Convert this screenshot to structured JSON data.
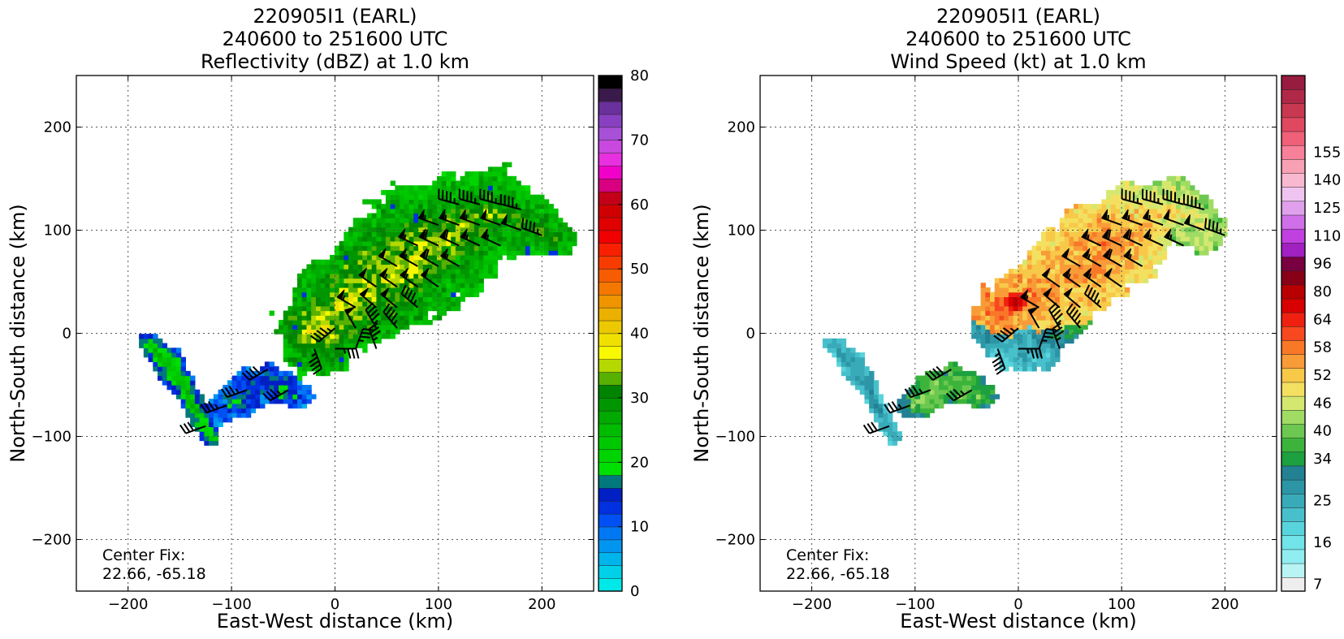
{
  "chart_data": [
    {
      "type": "heatmap",
      "title_lines": [
        "220905I1 (EARL)",
        "240600 to 251600 UTC",
        "Reflectivity (dBZ) at 1.0 km"
      ],
      "xlabel": "East-West distance (km)",
      "ylabel": "North-South distance (km)",
      "xlim": [
        -250,
        250
      ],
      "ylim": [
        -250,
        250
      ],
      "xticks": [
        -200,
        -100,
        0,
        100,
        200
      ],
      "yticks": [
        -200,
        -100,
        0,
        100,
        200
      ],
      "grid": true,
      "annotation": [
        "Center Fix:",
        "22.66, -65.18"
      ],
      "colorbar": {
        "min": 0,
        "max": 80,
        "tick_values": [
          0,
          10,
          20,
          30,
          40,
          50,
          60,
          70,
          80
        ],
        "colors": [
          "#00e8e8",
          "#00d0e8",
          "#00b4ec",
          "#0096f0",
          "#0078f4",
          "#0050f4",
          "#0030e0",
          "#0020c4",
          "#00787c",
          "#00e000",
          "#00d400",
          "#00c800",
          "#00bc00",
          "#00aa00",
          "#009600",
          "#008400",
          "#58b000",
          "#b4d800",
          "#f8f800",
          "#f0e000",
          "#ecc800",
          "#ecb000",
          "#f09400",
          "#f47800",
          "#f85c00",
          "#f83c00",
          "#f82000",
          "#f00000",
          "#e00000",
          "#d00000",
          "#c40018",
          "#d80080",
          "#f000c8",
          "#e830e0",
          "#c848e0",
          "#a850d8",
          "#8840c0",
          "#6a309c",
          "#3a1a4a",
          "#000000"
        ]
      },
      "echo_segments": [
        {
          "x": [
            -20,
            0,
            30,
            60,
            90,
            120,
            150,
            180,
            210
          ],
          "y": [
            0,
            20,
            45,
            65,
            82,
            100,
            115,
            105,
            90
          ],
          "width_km": [
            40,
            50,
            55,
            60,
            60,
            55,
            45,
            35,
            20
          ],
          "core_dbz": [
            38,
            36,
            35,
            36,
            34,
            33,
            32,
            30,
            30
          ],
          "edge_dbz": [
            24,
            24,
            25,
            24,
            24,
            23,
            23,
            23,
            24
          ]
        },
        {
          "x": [
            -180,
            -165,
            -150,
            -140,
            -130,
            -122
          ],
          "y": [
            -15,
            -30,
            -50,
            -70,
            -90,
            -105
          ],
          "width_km": [
            12,
            14,
            12,
            10,
            10,
            8
          ],
          "core_dbz": [
            26,
            26,
            25,
            25,
            24,
            24
          ],
          "edge_dbz": [
            12,
            12,
            13,
            14,
            14,
            14
          ]
        },
        {
          "x": [
            -125,
            -110,
            -95,
            -80,
            -65,
            -50,
            -35
          ],
          "y": [
            -80,
            -75,
            -65,
            -55,
            -50,
            -58,
            -65
          ],
          "width_km": [
            10,
            16,
            18,
            20,
            18,
            16,
            12
          ],
          "core_dbz": [
            14,
            14,
            15,
            16,
            18,
            20,
            14
          ],
          "edge_dbz": [
            8,
            8,
            9,
            10,
            10,
            11,
            8
          ]
        }
      ],
      "barbs": [
        {
          "x": 120,
          "y": 125,
          "speed_kt": 45,
          "dir_deg": 285
        },
        {
          "x": 140,
          "y": 125,
          "speed_kt": 45,
          "dir_deg": 285
        },
        {
          "x": 160,
          "y": 125,
          "speed_kt": 45,
          "dir_deg": 285
        },
        {
          "x": 180,
          "y": 120,
          "speed_kt": 45,
          "dir_deg": 285
        },
        {
          "x": 100,
          "y": 105,
          "speed_kt": 55,
          "dir_deg": 290
        },
        {
          "x": 120,
          "y": 105,
          "speed_kt": 55,
          "dir_deg": 290
        },
        {
          "x": 140,
          "y": 105,
          "speed_kt": 55,
          "dir_deg": 290
        },
        {
          "x": 160,
          "y": 105,
          "speed_kt": 50,
          "dir_deg": 290
        },
        {
          "x": 180,
          "y": 100,
          "speed_kt": 50,
          "dir_deg": 290
        },
        {
          "x": 200,
          "y": 95,
          "speed_kt": 45,
          "dir_deg": 290
        },
        {
          "x": 80,
          "y": 85,
          "speed_kt": 55,
          "dir_deg": 295
        },
        {
          "x": 100,
          "y": 85,
          "speed_kt": 60,
          "dir_deg": 295
        },
        {
          "x": 120,
          "y": 85,
          "speed_kt": 60,
          "dir_deg": 295
        },
        {
          "x": 140,
          "y": 85,
          "speed_kt": 55,
          "dir_deg": 295
        },
        {
          "x": 160,
          "y": 85,
          "speed_kt": 55,
          "dir_deg": 295
        },
        {
          "x": 60,
          "y": 65,
          "speed_kt": 50,
          "dir_deg": 300
        },
        {
          "x": 80,
          "y": 65,
          "speed_kt": 55,
          "dir_deg": 300
        },
        {
          "x": 100,
          "y": 65,
          "speed_kt": 60,
          "dir_deg": 300
        },
        {
          "x": 120,
          "y": 65,
          "speed_kt": 55,
          "dir_deg": 300
        },
        {
          "x": 40,
          "y": 45,
          "speed_kt": 50,
          "dir_deg": 305
        },
        {
          "x": 60,
          "y": 45,
          "speed_kt": 55,
          "dir_deg": 305
        },
        {
          "x": 80,
          "y": 45,
          "speed_kt": 55,
          "dir_deg": 305
        },
        {
          "x": 100,
          "y": 45,
          "speed_kt": 50,
          "dir_deg": 305
        },
        {
          "x": 20,
          "y": 25,
          "speed_kt": 55,
          "dir_deg": 300
        },
        {
          "x": 40,
          "y": 25,
          "speed_kt": 50,
          "dir_deg": 310
        },
        {
          "x": 60,
          "y": 25,
          "speed_kt": 50,
          "dir_deg": 310
        },
        {
          "x": 80,
          "y": 25,
          "speed_kt": 45,
          "dir_deg": 310
        },
        {
          "x": 0,
          "y": 5,
          "speed_kt": 45,
          "dir_deg": 230
        },
        {
          "x": 20,
          "y": 5,
          "speed_kt": 50,
          "dir_deg": 330
        },
        {
          "x": 40,
          "y": 5,
          "speed_kt": 45,
          "dir_deg": 330
        },
        {
          "x": 60,
          "y": 5,
          "speed_kt": 45,
          "dir_deg": 320
        },
        {
          "x": -20,
          "y": -15,
          "speed_kt": 45,
          "dir_deg": 160
        },
        {
          "x": 0,
          "y": -15,
          "speed_kt": 35,
          "dir_deg": 90
        },
        {
          "x": 20,
          "y": -15,
          "speed_kt": 35,
          "dir_deg": 20
        },
        {
          "x": 40,
          "y": -15,
          "speed_kt": 35,
          "dir_deg": 340
        },
        {
          "x": -65,
          "y": -35,
          "speed_kt": 40,
          "dir_deg": 240
        },
        {
          "x": -45,
          "y": -55,
          "speed_kt": 35,
          "dir_deg": 240
        },
        {
          "x": -85,
          "y": -55,
          "speed_kt": 35,
          "dir_deg": 250
        },
        {
          "x": -105,
          "y": -70,
          "speed_kt": 35,
          "dir_deg": 250
        },
        {
          "x": -125,
          "y": -90,
          "speed_kt": 30,
          "dir_deg": 250
        }
      ]
    },
    {
      "type": "heatmap",
      "title_lines": [
        "220905I1 (EARL)",
        "240600 to 251600 UTC",
        "Wind Speed (kt) at 1.0 km"
      ],
      "xlabel": "East-West distance (km)",
      "ylabel": "North-South distance (km)",
      "xlim": [
        -250,
        250
      ],
      "ylim": [
        -250,
        250
      ],
      "xticks": [
        -200,
        -100,
        0,
        100,
        200
      ],
      "yticks": [
        -200,
        -100,
        0,
        100,
        200
      ],
      "grid": true,
      "annotation": [
        "Center Fix:",
        "22.66, -65.18"
      ],
      "colorbar": {
        "tick_labels": [
          "7",
          "16",
          "25",
          "34",
          "40",
          "46",
          "52",
          "58",
          "64",
          "80",
          "96",
          "110",
          "125",
          "140",
          "155"
        ],
        "tick_index": [
          0,
          3,
          6,
          9,
          11,
          13,
          15,
          17,
          19,
          21,
          23,
          25,
          27,
          29,
          31
        ],
        "colors": [
          "#eeeeee",
          "#b8f4f4",
          "#90eef0",
          "#70e4e8",
          "#58d4dc",
          "#48c0cc",
          "#38aab8",
          "#2c96a6",
          "#228294",
          "#1ca040",
          "#3cb43c",
          "#6cc850",
          "#a0dc64",
          "#d4e870",
          "#f4e060",
          "#f8c848",
          "#f89c38",
          "#f87828",
          "#f84820",
          "#f02010",
          "#d80000",
          "#b80000",
          "#880018",
          "#780040",
          "#a020c0",
          "#c040e0",
          "#d070e8",
          "#e0a0ec",
          "#f0c4f0",
          "#f8b8d0",
          "#f8a0b4",
          "#f88098",
          "#f06078",
          "#e04860",
          "#c83850",
          "#b02848",
          "#981c40"
        ]
      },
      "wind_segments": [
        {
          "x": [
            -20,
            0,
            30,
            60,
            90,
            120,
            150,
            180
          ],
          "y": [
            20,
            30,
            45,
            65,
            85,
            105,
            120,
            95
          ],
          "width_km": [
            25,
            30,
            40,
            45,
            45,
            40,
            30,
            20
          ],
          "speed_kt": [
            60,
            58,
            55,
            56,
            56,
            52,
            48,
            46
          ]
        },
        {
          "x": [
            -25,
            -5,
            15,
            35,
            55
          ],
          "y": [
            0,
            -10,
            -15,
            0,
            10
          ],
          "width_km": [
            22,
            26,
            24,
            18,
            12
          ],
          "speed_kt": [
            30,
            25,
            27,
            34,
            40
          ]
        },
        {
          "x": [
            -180,
            -165,
            -150,
            -140,
            -130,
            -122
          ],
          "y": [
            -15,
            -30,
            -50,
            -70,
            -90,
            -105
          ],
          "width_km": [
            10,
            12,
            10,
            8,
            8,
            6
          ],
          "speed_kt": [
            27,
            27,
            28,
            28,
            28,
            27
          ]
        },
        {
          "x": [
            -110,
            -95,
            -80,
            -65,
            -50,
            -35
          ],
          "y": [
            -75,
            -65,
            -55,
            -50,
            -58,
            -65
          ],
          "width_km": [
            10,
            16,
            18,
            18,
            16,
            12
          ],
          "speed_kt": [
            36,
            40,
            42,
            40,
            40,
            38
          ]
        }
      ],
      "eye": {
        "x": -5,
        "y": 28,
        "radius_km": 10,
        "speed_kt": 82
      },
      "barb_ref": 0
    }
  ]
}
